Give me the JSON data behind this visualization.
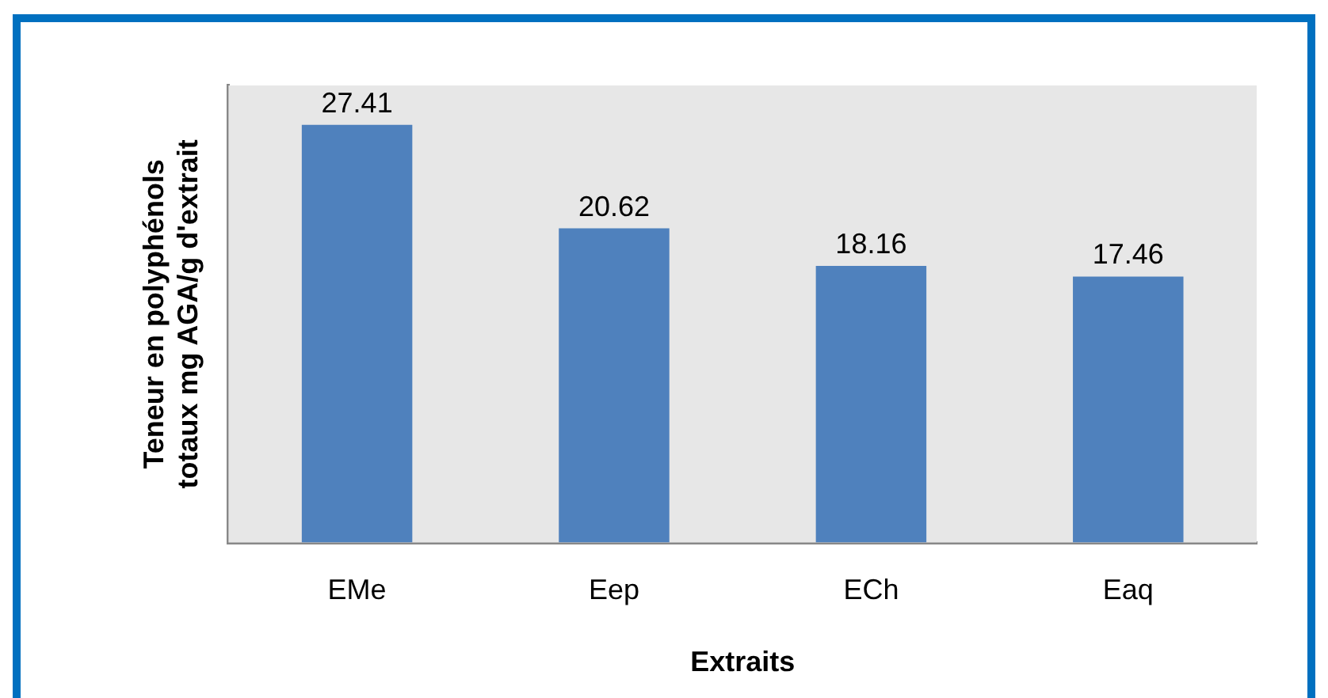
{
  "chart_data": {
    "type": "bar",
    "xlabel": "Extraits",
    "ylabel": "Teneur en polyphénols totaux mg AGA/g d'extrait",
    "categories": [
      "EMe",
      "Eep",
      "ECh",
      "Eaq"
    ],
    "values": [
      27.41,
      20.62,
      18.16,
      17.46
    ],
    "color": "#4f81bd",
    "data_labels": true
  }
}
